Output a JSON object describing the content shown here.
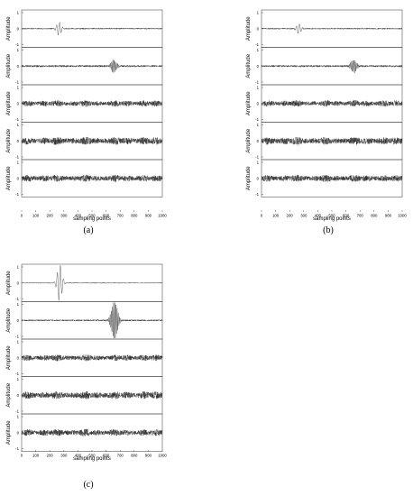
{
  "chart_data": [
    {
      "panel_label": "(a)",
      "type": "line",
      "xlabel": "sampling points",
      "ylabel": "Amplitude",
      "xlim": [
        0,
        1000
      ],
      "ylim": [
        -1,
        1
      ],
      "xticks": [
        0,
        100,
        200,
        300,
        400,
        500,
        600,
        700,
        800,
        900,
        1000
      ],
      "yticks": [
        1,
        0,
        -1
      ],
      "grid": false,
      "subplots": [
        {
          "signal": "gaussian-pulse",
          "center": 265,
          "amplitude": 0.35,
          "cycles_per_sample": 0.045,
          "width": 22,
          "noise": 0.03
        },
        {
          "signal": "gaussian-pulse",
          "center": 655,
          "amplitude": 0.35,
          "cycles_per_sample": 0.12,
          "width": 25,
          "noise": 0.05
        },
        {
          "signal": "noise",
          "amplitude": 0.18
        },
        {
          "signal": "noise",
          "amplitude": 0.22
        },
        {
          "signal": "noise",
          "amplitude": 0.2
        }
      ]
    },
    {
      "panel_label": "(b)",
      "type": "line",
      "xlabel": "sampling points",
      "ylabel": "Amplitude",
      "xlim": [
        0,
        1000
      ],
      "ylim": [
        -1,
        1
      ],
      "xticks": [
        0,
        100,
        200,
        300,
        400,
        500,
        600,
        700,
        800,
        900,
        1000
      ],
      "yticks": [
        1,
        0,
        -1
      ],
      "grid": false,
      "subplots": [
        {
          "signal": "gaussian-pulse",
          "center": 265,
          "amplitude": 0.25,
          "cycles_per_sample": 0.045,
          "width": 22,
          "noise": 0.03
        },
        {
          "signal": "gaussian-pulse",
          "center": 655,
          "amplitude": 0.35,
          "cycles_per_sample": 0.12,
          "width": 25,
          "noise": 0.05
        },
        {
          "signal": "noise",
          "amplitude": 0.18
        },
        {
          "signal": "noise",
          "amplitude": 0.22
        },
        {
          "signal": "noise",
          "amplitude": 0.2
        }
      ]
    },
    {
      "panel_label": "(c)",
      "type": "line",
      "xlabel": "sampling points",
      "ylabel": "Amplitude",
      "xlim": [
        0,
        1000
      ],
      "ylim": [
        -1,
        1
      ],
      "xticks": [
        0,
        100,
        200,
        300,
        400,
        500,
        600,
        700,
        800,
        900,
        1000
      ],
      "yticks": [
        1,
        0,
        -1
      ],
      "grid": false,
      "subplots": [
        {
          "signal": "gaussian-pulse",
          "center": 270,
          "amplitude": 1.0,
          "cycles_per_sample": 0.045,
          "width": 22,
          "noise": 0.02
        },
        {
          "signal": "gaussian-pulse",
          "center": 660,
          "amplitude": 1.0,
          "cycles_per_sample": 0.12,
          "width": 28,
          "noise": 0.04
        },
        {
          "signal": "noise",
          "amplitude": 0.18
        },
        {
          "signal": "noise",
          "amplitude": 0.22
        },
        {
          "signal": "noise",
          "amplitude": 0.2
        }
      ]
    }
  ]
}
